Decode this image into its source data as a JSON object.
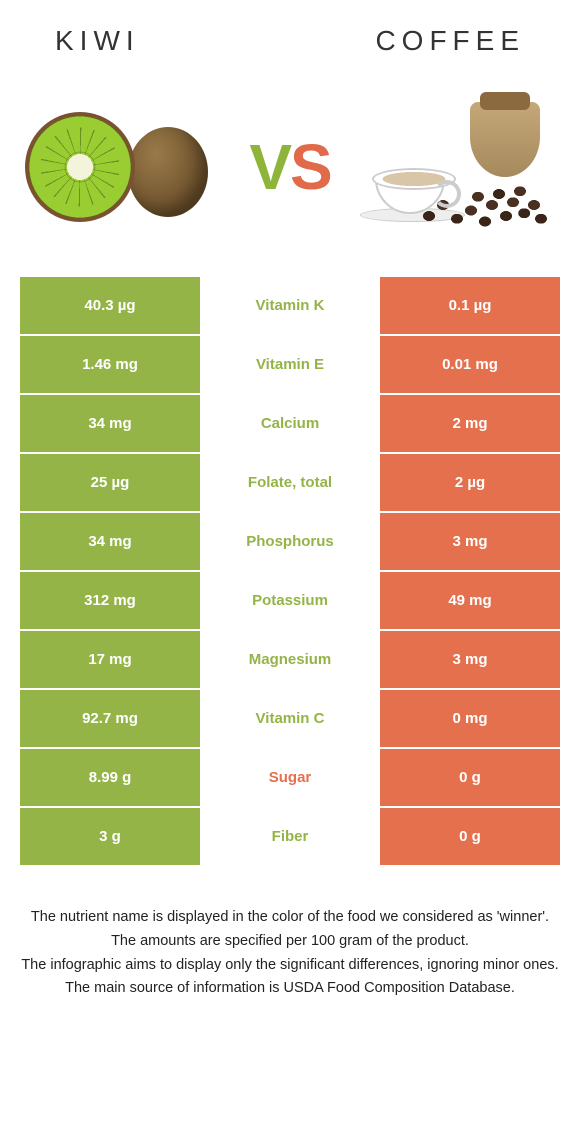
{
  "header": {
    "left_title": "Kiwi",
    "right_title": "Coffee"
  },
  "vs": {
    "v": "V",
    "s": "S"
  },
  "colors": {
    "left": "#94b447",
    "right": "#e4704e",
    "mid_left_text": "#94b447",
    "mid_right_text": "#e4704e"
  },
  "rows": [
    {
      "left": "40.3 µg",
      "label": "Vitamin K",
      "right": "0.1 µg",
      "winner": "left"
    },
    {
      "left": "1.46 mg",
      "label": "Vitamin E",
      "right": "0.01 mg",
      "winner": "left"
    },
    {
      "left": "34 mg",
      "label": "Calcium",
      "right": "2 mg",
      "winner": "left"
    },
    {
      "left": "25 µg",
      "label": "Folate, total",
      "right": "2 µg",
      "winner": "left"
    },
    {
      "left": "34 mg",
      "label": "Phosphorus",
      "right": "3 mg",
      "winner": "left"
    },
    {
      "left": "312 mg",
      "label": "Potassium",
      "right": "49 mg",
      "winner": "left"
    },
    {
      "left": "17 mg",
      "label": "Magnesium",
      "right": "3 mg",
      "winner": "left"
    },
    {
      "left": "92.7 mg",
      "label": "Vitamin C",
      "right": "0 mg",
      "winner": "left"
    },
    {
      "left": "8.99 g",
      "label": "Sugar",
      "right": "0 g",
      "winner": "right"
    },
    {
      "left": "3 g",
      "label": "Fiber",
      "right": "0 g",
      "winner": "left"
    }
  ],
  "footer": {
    "line1": "The nutrient name is displayed in the color of the food we considered as 'winner'.",
    "line2": "The amounts are specified per 100 gram of the product.",
    "line3": "The infographic aims to display only the significant differences, ignoring minor ones.",
    "line4": "The main source of information is USDA Food Composition Database."
  }
}
